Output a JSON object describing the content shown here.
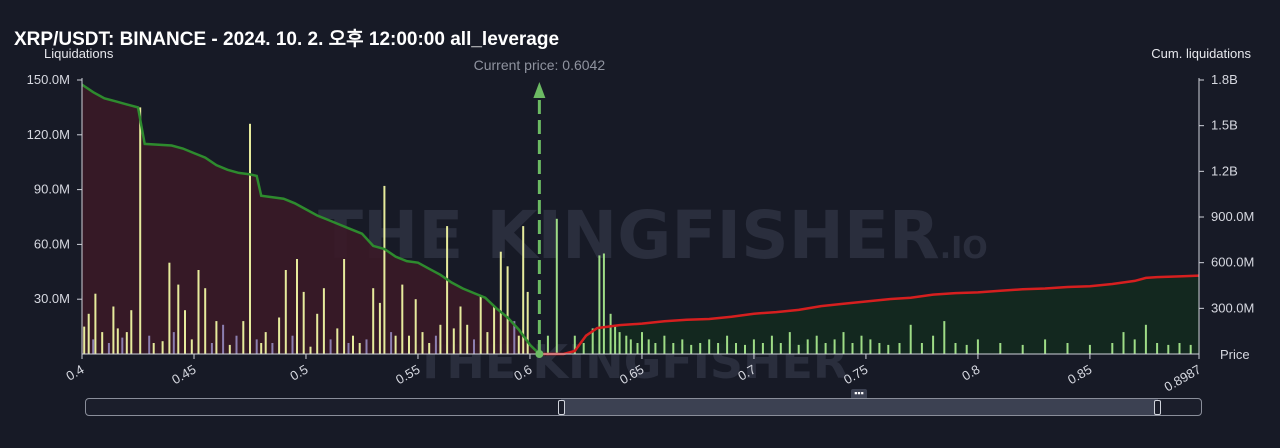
{
  "title": "XRP/USDT: BINANCE - 2024. 10. 2. 오후 12:00:00 all_leverage",
  "left_axis_name": "Liquidations",
  "right_axis_name": "Cum. liquidations",
  "price_axis_name": "Price",
  "current_price_label": "Current price: 0.6042",
  "watermark": {
    "main": "THE KINGFISHER",
    "suffix": ".IO"
  },
  "colors": {
    "background": "#171a26",
    "short_cum_line": "#2e8b2e",
    "long_cum_line": "#d61f1f",
    "short_fill": "#3a1a27",
    "long_fill": "#132a1f",
    "bar_yellow": "#e6eb9c",
    "bar_green": "#9edc86",
    "bar_purple": "#8c7fb0",
    "current_price": "#6cba63"
  },
  "chart_data": {
    "type": "bar",
    "x_range": [
      0.4,
      0.8987
    ],
    "current_price": 0.6042,
    "left_axis": {
      "label": "Liquidations",
      "ticks": [
        "30.0M",
        "60.0M",
        "90.0M",
        "120.0M",
        "150.0M"
      ],
      "range": [
        0,
        150000000
      ]
    },
    "right_axis": {
      "label": "Cum. liquidations",
      "ticks": [
        "300.0M",
        "600.0M",
        "900.0M",
        "1.2B",
        "1.5B",
        "1.8B"
      ],
      "range": [
        0,
        1800000000
      ]
    },
    "x_ticks": [
      "0.4",
      "0.45",
      "0.5",
      "0.55",
      "0.6",
      "0.65",
      "0.7",
      "0.75",
      "0.8",
      "0.85",
      "0.8987"
    ],
    "short_cum_line": [
      [
        0.4,
        1770
      ],
      [
        0.405,
        1720
      ],
      [
        0.41,
        1680
      ],
      [
        0.415,
        1660
      ],
      [
        0.42,
        1640
      ],
      [
        0.425,
        1620
      ],
      [
        0.428,
        1380
      ],
      [
        0.44,
        1370
      ],
      [
        0.445,
        1350
      ],
      [
        0.45,
        1320
      ],
      [
        0.455,
        1290
      ],
      [
        0.46,
        1240
      ],
      [
        0.465,
        1210
      ],
      [
        0.47,
        1190
      ],
      [
        0.475,
        1180
      ],
      [
        0.478,
        1170
      ],
      [
        0.48,
        1040
      ],
      [
        0.49,
        1020
      ],
      [
        0.495,
        990
      ],
      [
        0.5,
        950
      ],
      [
        0.505,
        910
      ],
      [
        0.51,
        880
      ],
      [
        0.515,
        850
      ],
      [
        0.52,
        820
      ],
      [
        0.525,
        790
      ],
      [
        0.53,
        710
      ],
      [
        0.535,
        690
      ],
      [
        0.54,
        640
      ],
      [
        0.545,
        610
      ],
      [
        0.55,
        600
      ],
      [
        0.555,
        560
      ],
      [
        0.56,
        520
      ],
      [
        0.565,
        470
      ],
      [
        0.57,
        430
      ],
      [
        0.575,
        400
      ],
      [
        0.58,
        370
      ],
      [
        0.585,
        300
      ],
      [
        0.59,
        240
      ],
      [
        0.595,
        160
      ],
      [
        0.6,
        60
      ],
      [
        0.6042,
        0
      ]
    ],
    "long_cum_line": [
      [
        0.6042,
        0
      ],
      [
        0.615,
        0
      ],
      [
        0.62,
        20
      ],
      [
        0.625,
        120
      ],
      [
        0.63,
        170
      ],
      [
        0.64,
        190
      ],
      [
        0.65,
        200
      ],
      [
        0.66,
        215
      ],
      [
        0.67,
        225
      ],
      [
        0.68,
        230
      ],
      [
        0.69,
        245
      ],
      [
        0.7,
        265
      ],
      [
        0.71,
        275
      ],
      [
        0.72,
        290
      ],
      [
        0.73,
        315
      ],
      [
        0.74,
        330
      ],
      [
        0.75,
        345
      ],
      [
        0.76,
        360
      ],
      [
        0.77,
        370
      ],
      [
        0.78,
        390
      ],
      [
        0.79,
        400
      ],
      [
        0.8,
        405
      ],
      [
        0.81,
        415
      ],
      [
        0.82,
        425
      ],
      [
        0.83,
        430
      ],
      [
        0.84,
        440
      ],
      [
        0.85,
        445
      ],
      [
        0.86,
        460
      ],
      [
        0.87,
        480
      ],
      [
        0.875,
        500
      ],
      [
        0.88,
        505
      ],
      [
        0.89,
        510
      ],
      [
        0.8987,
        515
      ]
    ],
    "cum_line_units": "millions",
    "bars": [
      [
        0.401,
        15,
        "y"
      ],
      [
        0.403,
        22,
        "y"
      ],
      [
        0.405,
        8,
        "p"
      ],
      [
        0.406,
        33,
        "y"
      ],
      [
        0.409,
        12,
        "y"
      ],
      [
        0.412,
        6,
        "p"
      ],
      [
        0.414,
        26,
        "y"
      ],
      [
        0.416,
        14,
        "y"
      ],
      [
        0.418,
        9,
        "p"
      ],
      [
        0.42,
        12,
        "y"
      ],
      [
        0.422,
        24,
        "y"
      ],
      [
        0.426,
        135,
        "y"
      ],
      [
        0.43,
        10,
        "p"
      ],
      [
        0.432,
        6,
        "y"
      ],
      [
        0.436,
        7,
        "y"
      ],
      [
        0.439,
        50,
        "y"
      ],
      [
        0.441,
        12,
        "p"
      ],
      [
        0.443,
        38,
        "y"
      ],
      [
        0.446,
        24,
        "y"
      ],
      [
        0.449,
        8,
        "y"
      ],
      [
        0.452,
        46,
        "y"
      ],
      [
        0.455,
        36,
        "y"
      ],
      [
        0.458,
        6,
        "p"
      ],
      [
        0.46,
        18,
        "y"
      ],
      [
        0.463,
        16,
        "p"
      ],
      [
        0.466,
        5,
        "y"
      ],
      [
        0.469,
        10,
        "p"
      ],
      [
        0.472,
        18,
        "y"
      ],
      [
        0.475,
        126,
        "y"
      ],
      [
        0.478,
        8,
        "p"
      ],
      [
        0.48,
        6,
        "y"
      ],
      [
        0.482,
        12,
        "y"
      ],
      [
        0.485,
        6,
        "p"
      ],
      [
        0.488,
        20,
        "y"
      ],
      [
        0.491,
        46,
        "y"
      ],
      [
        0.494,
        10,
        "p"
      ],
      [
        0.496,
        52,
        "y"
      ],
      [
        0.499,
        34,
        "y"
      ],
      [
        0.502,
        4,
        "y"
      ],
      [
        0.505,
        22,
        "y"
      ],
      [
        0.508,
        36,
        "y"
      ],
      [
        0.511,
        8,
        "p"
      ],
      [
        0.514,
        14,
        "y"
      ],
      [
        0.517,
        52,
        "y"
      ],
      [
        0.519,
        6,
        "p"
      ],
      [
        0.521,
        10,
        "y"
      ],
      [
        0.524,
        6,
        "y"
      ],
      [
        0.527,
        8,
        "p"
      ],
      [
        0.53,
        36,
        "y"
      ],
      [
        0.533,
        28,
        "y"
      ],
      [
        0.535,
        92,
        "y"
      ],
      [
        0.538,
        12,
        "p"
      ],
      [
        0.54,
        10,
        "y"
      ],
      [
        0.543,
        38,
        "y"
      ],
      [
        0.546,
        10,
        "y"
      ],
      [
        0.549,
        30,
        "y"
      ],
      [
        0.552,
        12,
        "y"
      ],
      [
        0.555,
        6,
        "y"
      ],
      [
        0.558,
        10,
        "p"
      ],
      [
        0.56,
        16,
        "y"
      ],
      [
        0.563,
        70,
        "y"
      ],
      [
        0.566,
        14,
        "y"
      ],
      [
        0.569,
        26,
        "y"
      ],
      [
        0.572,
        16,
        "y"
      ],
      [
        0.575,
        8,
        "p"
      ],
      [
        0.578,
        32,
        "y"
      ],
      [
        0.581,
        12,
        "y"
      ],
      [
        0.584,
        26,
        "y"
      ],
      [
        0.587,
        56,
        "y"
      ],
      [
        0.59,
        48,
        "y"
      ],
      [
        0.593,
        18,
        "p"
      ],
      [
        0.595,
        10,
        "y"
      ],
      [
        0.597,
        70,
        "y"
      ],
      [
        0.599,
        34,
        "y"
      ],
      [
        0.608,
        10,
        "g"
      ],
      [
        0.612,
        74,
        "g"
      ],
      [
        0.62,
        10,
        "g"
      ],
      [
        0.624,
        6,
        "g"
      ],
      [
        0.628,
        14,
        "g"
      ],
      [
        0.631,
        54,
        "g"
      ],
      [
        0.633,
        55,
        "g"
      ],
      [
        0.636,
        22,
        "g"
      ],
      [
        0.638,
        16,
        "g"
      ],
      [
        0.64,
        12,
        "g"
      ],
      [
        0.643,
        10,
        "g"
      ],
      [
        0.645,
        8,
        "g"
      ],
      [
        0.648,
        6,
        "g"
      ],
      [
        0.65,
        12,
        "g"
      ],
      [
        0.653,
        8,
        "g"
      ],
      [
        0.656,
        6,
        "g"
      ],
      [
        0.66,
        10,
        "g"
      ],
      [
        0.664,
        6,
        "g"
      ],
      [
        0.668,
        8,
        "g"
      ],
      [
        0.672,
        5,
        "g"
      ],
      [
        0.676,
        6,
        "g"
      ],
      [
        0.68,
        8,
        "g"
      ],
      [
        0.684,
        6,
        "g"
      ],
      [
        0.688,
        10,
        "g"
      ],
      [
        0.692,
        6,
        "g"
      ],
      [
        0.696,
        5,
        "g"
      ],
      [
        0.7,
        8,
        "g"
      ],
      [
        0.704,
        6,
        "g"
      ],
      [
        0.708,
        10,
        "g"
      ],
      [
        0.712,
        6,
        "g"
      ],
      [
        0.716,
        12,
        "g"
      ],
      [
        0.72,
        5,
        "g"
      ],
      [
        0.724,
        8,
        "g"
      ],
      [
        0.728,
        10,
        "g"
      ],
      [
        0.732,
        6,
        "g"
      ],
      [
        0.736,
        8,
        "g"
      ],
      [
        0.74,
        12,
        "g"
      ],
      [
        0.744,
        6,
        "g"
      ],
      [
        0.748,
        10,
        "g"
      ],
      [
        0.752,
        8,
        "g"
      ],
      [
        0.756,
        6,
        "g"
      ],
      [
        0.76,
        5,
        "g"
      ],
      [
        0.765,
        6,
        "g"
      ],
      [
        0.77,
        16,
        "g"
      ],
      [
        0.775,
        6,
        "g"
      ],
      [
        0.78,
        10,
        "g"
      ],
      [
        0.785,
        18,
        "g"
      ],
      [
        0.79,
        6,
        "g"
      ],
      [
        0.795,
        5,
        "g"
      ],
      [
        0.8,
        8,
        "g"
      ],
      [
        0.81,
        6,
        "g"
      ],
      [
        0.82,
        5,
        "g"
      ],
      [
        0.83,
        8,
        "g"
      ],
      [
        0.84,
        6,
        "g"
      ],
      [
        0.85,
        5,
        "g"
      ],
      [
        0.86,
        6,
        "g"
      ],
      [
        0.865,
        12,
        "g"
      ],
      [
        0.87,
        8,
        "g"
      ],
      [
        0.875,
        16,
        "g"
      ],
      [
        0.88,
        6,
        "g"
      ],
      [
        0.885,
        5,
        "g"
      ],
      [
        0.89,
        6,
        "g"
      ],
      [
        0.895,
        5,
        "g"
      ]
    ],
    "bar_units": "millions"
  }
}
